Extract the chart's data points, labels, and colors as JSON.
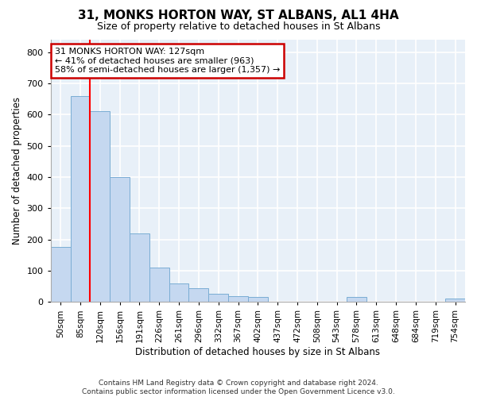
{
  "title": "31, MONKS HORTON WAY, ST ALBANS, AL1 4HA",
  "subtitle": "Size of property relative to detached houses in St Albans",
  "xlabel": "Distribution of detached houses by size in St Albans",
  "ylabel": "Number of detached properties",
  "categories": [
    "50sqm",
    "85sqm",
    "120sqm",
    "156sqm",
    "191sqm",
    "226sqm",
    "261sqm",
    "296sqm",
    "332sqm",
    "367sqm",
    "402sqm",
    "437sqm",
    "472sqm",
    "508sqm",
    "543sqm",
    "578sqm",
    "613sqm",
    "648sqm",
    "684sqm",
    "719sqm",
    "754sqm"
  ],
  "values": [
    175,
    660,
    610,
    400,
    220,
    110,
    60,
    45,
    25,
    18,
    15,
    2,
    2,
    2,
    0,
    15,
    0,
    0,
    0,
    0,
    10
  ],
  "bar_color": "#c5d8f0",
  "bar_edge_color": "#7aadd4",
  "plot_bg_color": "#e8f0f8",
  "grid_color": "#ffffff",
  "annotation_text": "31 MONKS HORTON WAY: 127sqm\n← 41% of detached houses are smaller (963)\n58% of semi-detached houses are larger (1,357) →",
  "annotation_box_facecolor": "#ffffff",
  "annotation_box_edgecolor": "#cc0000",
  "red_line_x": 1.5,
  "footer": "Contains HM Land Registry data © Crown copyright and database right 2024.\nContains public sector information licensed under the Open Government Licence v3.0.",
  "ylim": [
    0,
    840
  ],
  "yticks": [
    0,
    100,
    200,
    300,
    400,
    500,
    600,
    700,
    800
  ],
  "fig_bg_color": "#ffffff",
  "title_fontsize": 11,
  "subtitle_fontsize": 9,
  "ylabel_fontsize": 8.5,
  "xlabel_fontsize": 8.5,
  "tick_fontsize": 8,
  "xtick_fontsize": 7.5,
  "footer_fontsize": 6.5,
  "annot_fontsize": 8
}
